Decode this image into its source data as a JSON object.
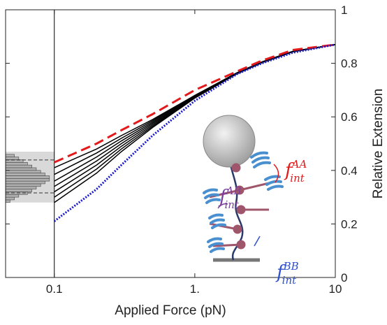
{
  "chart_data": {
    "type": "line",
    "xlabel": "Applied Force (pN)",
    "ylabel": "Relative Extension",
    "xscale": "log",
    "xlim": [
      0.045,
      10
    ],
    "xticks": [
      0.1,
      {
        "value": 1,
        "label": "1."
      },
      10
    ],
    "ylim": [
      0,
      1
    ],
    "yticks": [
      0,
      0.2,
      0.4,
      0.6,
      0.8,
      1
    ],
    "x": [
      0.1,
      0.2,
      0.3,
      0.5,
      1,
      2,
      3,
      5,
      10
    ],
    "series": [
      {
        "color": "#000000",
        "style": "solid",
        "values": [
          0.41,
          0.48,
          0.53,
          0.59,
          0.68,
          0.765,
          0.805,
          0.845,
          0.87
        ]
      },
      {
        "color": "#000000",
        "style": "solid",
        "values": [
          0.385,
          0.465,
          0.52,
          0.585,
          0.68,
          0.765,
          0.805,
          0.845,
          0.87
        ]
      },
      {
        "color": "#000000",
        "style": "solid",
        "values": [
          0.36,
          0.45,
          0.51,
          0.58,
          0.678,
          0.765,
          0.805,
          0.845,
          0.87
        ]
      },
      {
        "color": "#000000",
        "style": "solid",
        "values": [
          0.34,
          0.435,
          0.5,
          0.575,
          0.676,
          0.764,
          0.805,
          0.845,
          0.87
        ]
      },
      {
        "color": "#000000",
        "style": "solid",
        "values": [
          0.32,
          0.42,
          0.49,
          0.57,
          0.674,
          0.763,
          0.804,
          0.845,
          0.87
        ]
      },
      {
        "color": "#000000",
        "style": "solid",
        "values": [
          0.3,
          0.405,
          0.48,
          0.565,
          0.672,
          0.762,
          0.803,
          0.844,
          0.87
        ]
      },
      {
        "color": "#000000",
        "style": "solid",
        "values": [
          0.28,
          0.39,
          0.47,
          0.56,
          0.67,
          0.761,
          0.802,
          0.843,
          0.87
        ]
      },
      {
        "color": "#e31a1c",
        "style": "dashed",
        "values": [
          0.43,
          0.5,
          0.55,
          0.61,
          0.7,
          0.77,
          0.81,
          0.85,
          0.87
        ]
      },
      {
        "color": "#1a1acd",
        "style": "dotted",
        "values": [
          0.21,
          0.33,
          0.42,
          0.53,
          0.66,
          0.76,
          0.8,
          0.84,
          0.87
        ]
      }
    ],
    "vline": 0.1,
    "histogram": {
      "bins": [
        0.28,
        0.29,
        0.3,
        0.31,
        0.32,
        0.33,
        0.34,
        0.35,
        0.36,
        0.37,
        0.38,
        0.39,
        0.4,
        0.41,
        0.42,
        0.43,
        0.44,
        0.45,
        0.46
      ],
      "counts": [
        1,
        2,
        3,
        5,
        6,
        7,
        8,
        9,
        10,
        10,
        9,
        8,
        7,
        6,
        5,
        4,
        3,
        2
      ],
      "band": [
        0.28,
        0.47
      ],
      "quantiles": [
        0.316,
        0.439
      ]
    },
    "annotations": [
      {
        "base": "f",
        "sub": "int",
        "sup": "AA",
        "color": "#e31a1c"
      },
      {
        "base": "f",
        "sub": "int",
        "sup": "AB",
        "color": "#7b3f9e"
      },
      {
        "base": "f",
        "sub": "int",
        "sup": "BB",
        "color": "#2f4fd0"
      }
    ]
  }
}
